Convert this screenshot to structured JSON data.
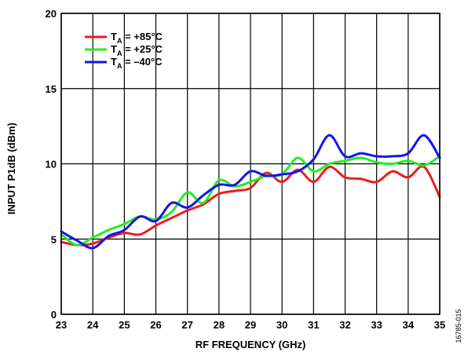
{
  "chart_data": {
    "type": "line",
    "title": "",
    "xlabel": "RF FREQUENCY (GHz)",
    "ylabel": "INPUT P1dB (dBm)",
    "xlim": [
      23,
      35
    ],
    "ylim": [
      0,
      20
    ],
    "xticks": [
      23,
      24,
      25,
      26,
      27,
      28,
      29,
      30,
      31,
      32,
      33,
      34,
      35
    ],
    "yticks": [
      0,
      5,
      10,
      15,
      20
    ],
    "grid": true,
    "legend_position": "top-left",
    "x": [
      23,
      23.5,
      24,
      24.5,
      25,
      25.5,
      26,
      26.5,
      27,
      27.5,
      28,
      28.5,
      29,
      29.5,
      30,
      30.5,
      31,
      31.5,
      32,
      32.5,
      33,
      33.5,
      34,
      34.5,
      35
    ],
    "series": [
      {
        "name": "T_A = +85°C",
        "legend": {
          "main": "T",
          "sub": "A",
          "rest": " = +85°C"
        },
        "color": "#ee1c1c",
        "values": [
          4.8,
          4.6,
          4.7,
          5.1,
          5.4,
          5.3,
          5.9,
          6.4,
          6.9,
          7.3,
          8.0,
          8.2,
          8.4,
          9.4,
          8.8,
          9.6,
          8.8,
          9.8,
          9.1,
          9.0,
          8.8,
          9.5,
          9.1,
          9.8,
          7.8
        ]
      },
      {
        "name": "T_A = +25°C",
        "legend": {
          "main": "T",
          "sub": "A",
          "rest": " = +25°C"
        },
        "color": "#22ee22",
        "values": [
          5.3,
          4.6,
          5.1,
          5.6,
          6.0,
          6.5,
          6.3,
          6.8,
          8.1,
          7.4,
          8.9,
          8.5,
          8.8,
          9.2,
          9.3,
          10.4,
          9.5,
          10.0,
          10.2,
          10.4,
          10.1,
          10.0,
          10.2,
          9.9,
          10.5
        ]
      },
      {
        "name": "T_A = –40°C",
        "legend": {
          "main": "T",
          "sub": "A",
          "rest": " = –40°C"
        },
        "color": "#1414ee",
        "values": [
          5.5,
          4.9,
          4.4,
          5.2,
          5.6,
          6.5,
          6.2,
          7.4,
          7.1,
          7.9,
          8.6,
          8.6,
          9.5,
          9.2,
          9.3,
          9.5,
          10.3,
          11.9,
          10.5,
          10.7,
          10.5,
          10.5,
          10.7,
          11.9,
          10.4
        ]
      }
    ]
  },
  "figure_id": "16785-015"
}
